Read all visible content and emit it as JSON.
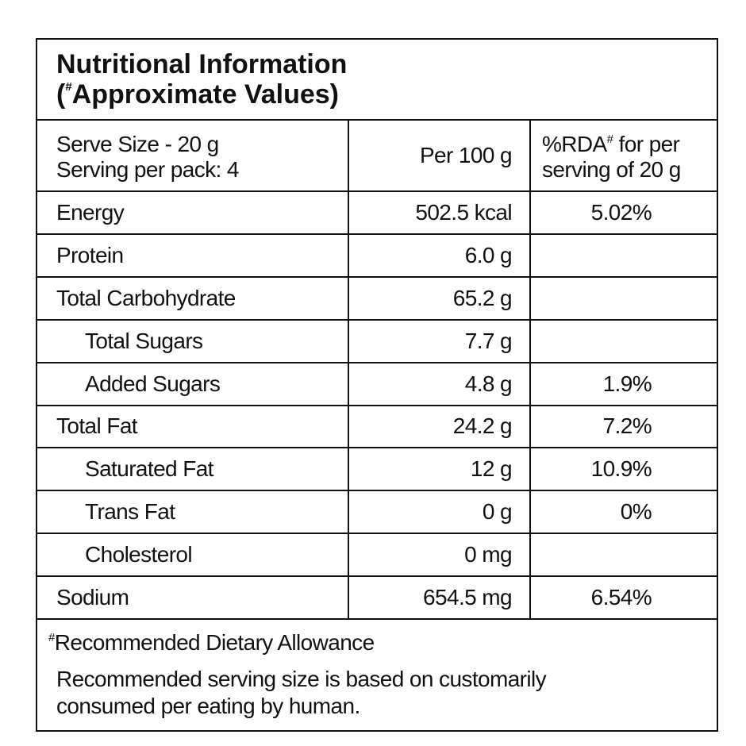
{
  "title": {
    "line1": "Nutritional Information",
    "line2_open": "(",
    "line2_mark": "#",
    "line2_text": "Approximate Values)"
  },
  "header": {
    "serve_size": "Serve Size - 20 g",
    "servings": "Serving per pack: 4",
    "per100": "Per 100 g",
    "rda_text": "%RDA",
    "rda_mark": "#",
    "rda_rest": " for per",
    "rda_line2": "serving of 20 g"
  },
  "rows": [
    {
      "label": "Energy",
      "per100": "502.5 kcal",
      "rda": "5.02%"
    },
    {
      "label": "Protein",
      "per100": "6.0 g"
    },
    {
      "label": "Total Carbohydrate",
      "per100": "65.2 g"
    },
    {
      "label": "Total Sugars",
      "per100": "7.7 g",
      "indent": true
    },
    {
      "label": "Added Sugars",
      "per100": "4.8 g",
      "rda": "1.9%",
      "indent": true
    },
    {
      "label": "Total Fat",
      "per100": "24.2 g",
      "rda": "7.2%"
    },
    {
      "label": "Saturated Fat",
      "per100": "12 g",
      "rda": "10.9%",
      "indent": true
    },
    {
      "label": "Trans Fat",
      "per100": "0 g",
      "rda": "0%",
      "indent": true
    },
    {
      "label": "Cholesterol",
      "per100": "0 mg",
      "indent": true
    },
    {
      "label": "Sodium",
      "per100": "654.5 mg",
      "rda": "6.54%"
    }
  ],
  "footer": {
    "mark": "#",
    "rda_def": "Recommended Dietary Allowance",
    "note_line1": "Recommended serving size is based on customarily",
    "note_line2": "consumed per eating by human."
  }
}
